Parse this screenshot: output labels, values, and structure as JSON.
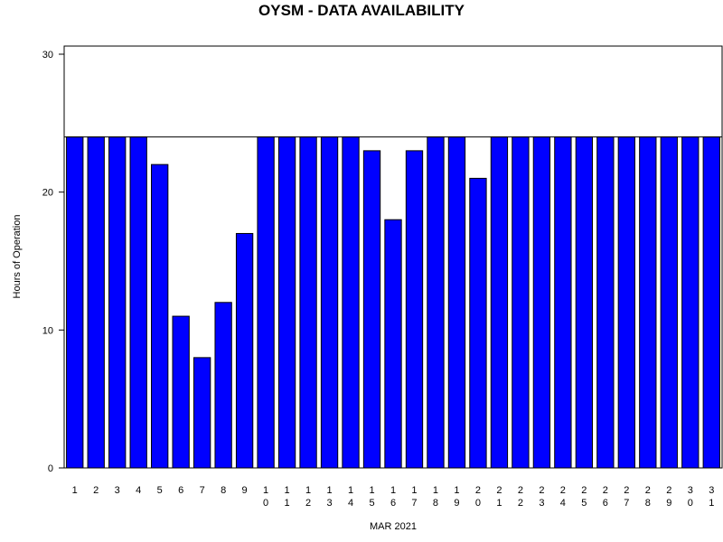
{
  "chart_data": {
    "type": "bar",
    "title": "OYSM - DATA AVAILABILITY",
    "xlabel": "MAR 2021",
    "ylabel": "Hours of Operation",
    "categories": [
      "1",
      "2",
      "3",
      "4",
      "5",
      "6",
      "7",
      "8",
      "9",
      "10",
      "11",
      "12",
      "13",
      "14",
      "15",
      "16",
      "17",
      "18",
      "19",
      "20",
      "21",
      "22",
      "23",
      "24",
      "25",
      "26",
      "27",
      "28",
      "29",
      "30",
      "31"
    ],
    "values": [
      24,
      24,
      24,
      24,
      22,
      11,
      8,
      12,
      17,
      24,
      24,
      24,
      24,
      24,
      23,
      18,
      23,
      24,
      24,
      21,
      24,
      24,
      24,
      24,
      24,
      24,
      24,
      24,
      24,
      24,
      24
    ],
    "ylim": [
      0,
      30
    ],
    "yticks": [
      0,
      10,
      20,
      30
    ],
    "reference_line": 24,
    "grid": false,
    "bar_color": "#0000ff",
    "bar_edge_color": "#000000"
  }
}
